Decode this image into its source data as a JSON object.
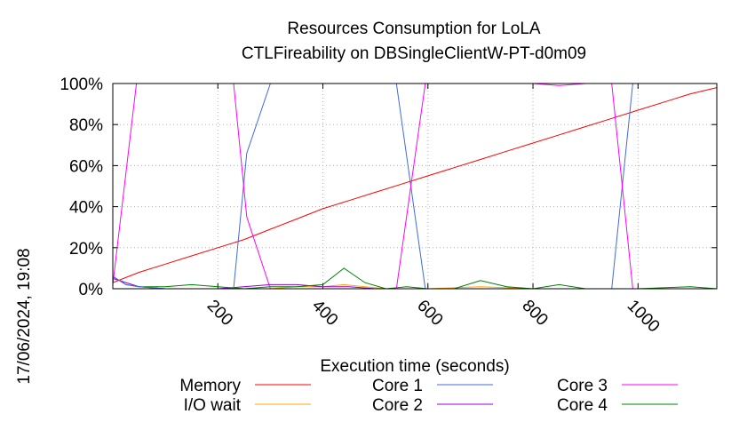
{
  "chart_data": {
    "type": "line",
    "title": "Resources Consumption for LoLA",
    "subtitle": "CTLFireability on DBSingleClientW-PT-d0m09",
    "xlabel": "Execution time (seconds)",
    "ylabel": "",
    "side_label": "17/06/2024, 19:08",
    "xlim": [
      0,
      1150
    ],
    "ylim": [
      0,
      100
    ],
    "x_ticks": [
      200,
      400,
      600,
      800,
      1000
    ],
    "y_ticks": [
      0,
      20,
      40,
      60,
      80,
      100
    ],
    "y_tick_labels": [
      "0%",
      "20%",
      "40%",
      "60%",
      "80%",
      "100%"
    ],
    "legend_position": "bottom",
    "series": [
      {
        "name": "Memory",
        "color": "#ff0000",
        "points": [
          [
            0,
            3
          ],
          [
            50,
            8
          ],
          [
            100,
            12
          ],
          [
            150,
            16
          ],
          [
            200,
            20
          ],
          [
            250,
            24
          ],
          [
            300,
            29
          ],
          [
            350,
            34
          ],
          [
            400,
            39
          ],
          [
            450,
            43
          ],
          [
            500,
            47
          ],
          [
            550,
            51
          ],
          [
            600,
            55
          ],
          [
            650,
            59
          ],
          [
            700,
            63
          ],
          [
            750,
            67
          ],
          [
            800,
            71
          ],
          [
            850,
            75
          ],
          [
            900,
            79
          ],
          [
            950,
            83
          ],
          [
            1000,
            87
          ],
          [
            1050,
            91
          ],
          [
            1100,
            95
          ],
          [
            1150,
            98
          ]
        ]
      },
      {
        "name": "I/O wait",
        "color": "#ffa500",
        "points": [
          [
            0,
            0
          ],
          [
            100,
            0
          ],
          [
            200,
            0
          ],
          [
            300,
            0
          ],
          [
            350,
            1
          ],
          [
            400,
            1
          ],
          [
            440,
            2
          ],
          [
            480,
            1
          ],
          [
            520,
            0
          ],
          [
            600,
            0
          ],
          [
            700,
            1
          ],
          [
            800,
            0
          ],
          [
            900,
            0
          ],
          [
            1000,
            0
          ],
          [
            1150,
            0
          ]
        ]
      },
      {
        "name": "Core 1",
        "color": "#4169e1",
        "points": [
          [
            0,
            6
          ],
          [
            25,
            2
          ],
          [
            50,
            1
          ],
          [
            100,
            0
          ],
          [
            200,
            0
          ],
          [
            230,
            0
          ],
          [
            255,
            66
          ],
          [
            300,
            100
          ],
          [
            400,
            100
          ],
          [
            500,
            100
          ],
          [
            540,
            100
          ],
          [
            595,
            0
          ],
          [
            650,
            0
          ],
          [
            700,
            0
          ],
          [
            800,
            0
          ],
          [
            900,
            0
          ],
          [
            950,
            0
          ],
          [
            990,
            100
          ],
          [
            1050,
            100
          ],
          [
            1100,
            100
          ],
          [
            1150,
            100
          ]
        ]
      },
      {
        "name": "Core 2",
        "color": "#9400d3",
        "points": [
          [
            0,
            5
          ],
          [
            25,
            3
          ],
          [
            50,
            1
          ],
          [
            100,
            0
          ],
          [
            200,
            0
          ],
          [
            300,
            2
          ],
          [
            350,
            2
          ],
          [
            400,
            1
          ],
          [
            450,
            1
          ],
          [
            500,
            0
          ],
          [
            600,
            0
          ],
          [
            700,
            0
          ],
          [
            800,
            0
          ],
          [
            900,
            0
          ],
          [
            1000,
            0
          ],
          [
            1150,
            0
          ]
        ]
      },
      {
        "name": "Core 3",
        "color": "#ff00ff",
        "points": [
          [
            0,
            2
          ],
          [
            45,
            100
          ],
          [
            100,
            100
          ],
          [
            150,
            100
          ],
          [
            200,
            100
          ],
          [
            230,
            100
          ],
          [
            255,
            35
          ],
          [
            300,
            0
          ],
          [
            350,
            0
          ],
          [
            400,
            0
          ],
          [
            450,
            0
          ],
          [
            500,
            0
          ],
          [
            540,
            0
          ],
          [
            595,
            100
          ],
          [
            650,
            100
          ],
          [
            700,
            100
          ],
          [
            750,
            100
          ],
          [
            800,
            100
          ],
          [
            850,
            99
          ],
          [
            900,
            100
          ],
          [
            950,
            100
          ],
          [
            990,
            0
          ],
          [
            1050,
            0
          ],
          [
            1100,
            0
          ],
          [
            1150,
            0
          ]
        ]
      },
      {
        "name": "Core 4",
        "color": "#008000",
        "points": [
          [
            0,
            6
          ],
          [
            25,
            2
          ],
          [
            50,
            1
          ],
          [
            100,
            1
          ],
          [
            150,
            2
          ],
          [
            200,
            1
          ],
          [
            250,
            0
          ],
          [
            300,
            1
          ],
          [
            350,
            1
          ],
          [
            400,
            2
          ],
          [
            440,
            10
          ],
          [
            480,
            3
          ],
          [
            520,
            0
          ],
          [
            560,
            1
          ],
          [
            600,
            0
          ],
          [
            650,
            0
          ],
          [
            700,
            4
          ],
          [
            750,
            1
          ],
          [
            800,
            0
          ],
          [
            850,
            2
          ],
          [
            900,
            0
          ],
          [
            950,
            0
          ],
          [
            1000,
            0
          ],
          [
            1100,
            1
          ],
          [
            1150,
            0
          ]
        ]
      }
    ]
  }
}
